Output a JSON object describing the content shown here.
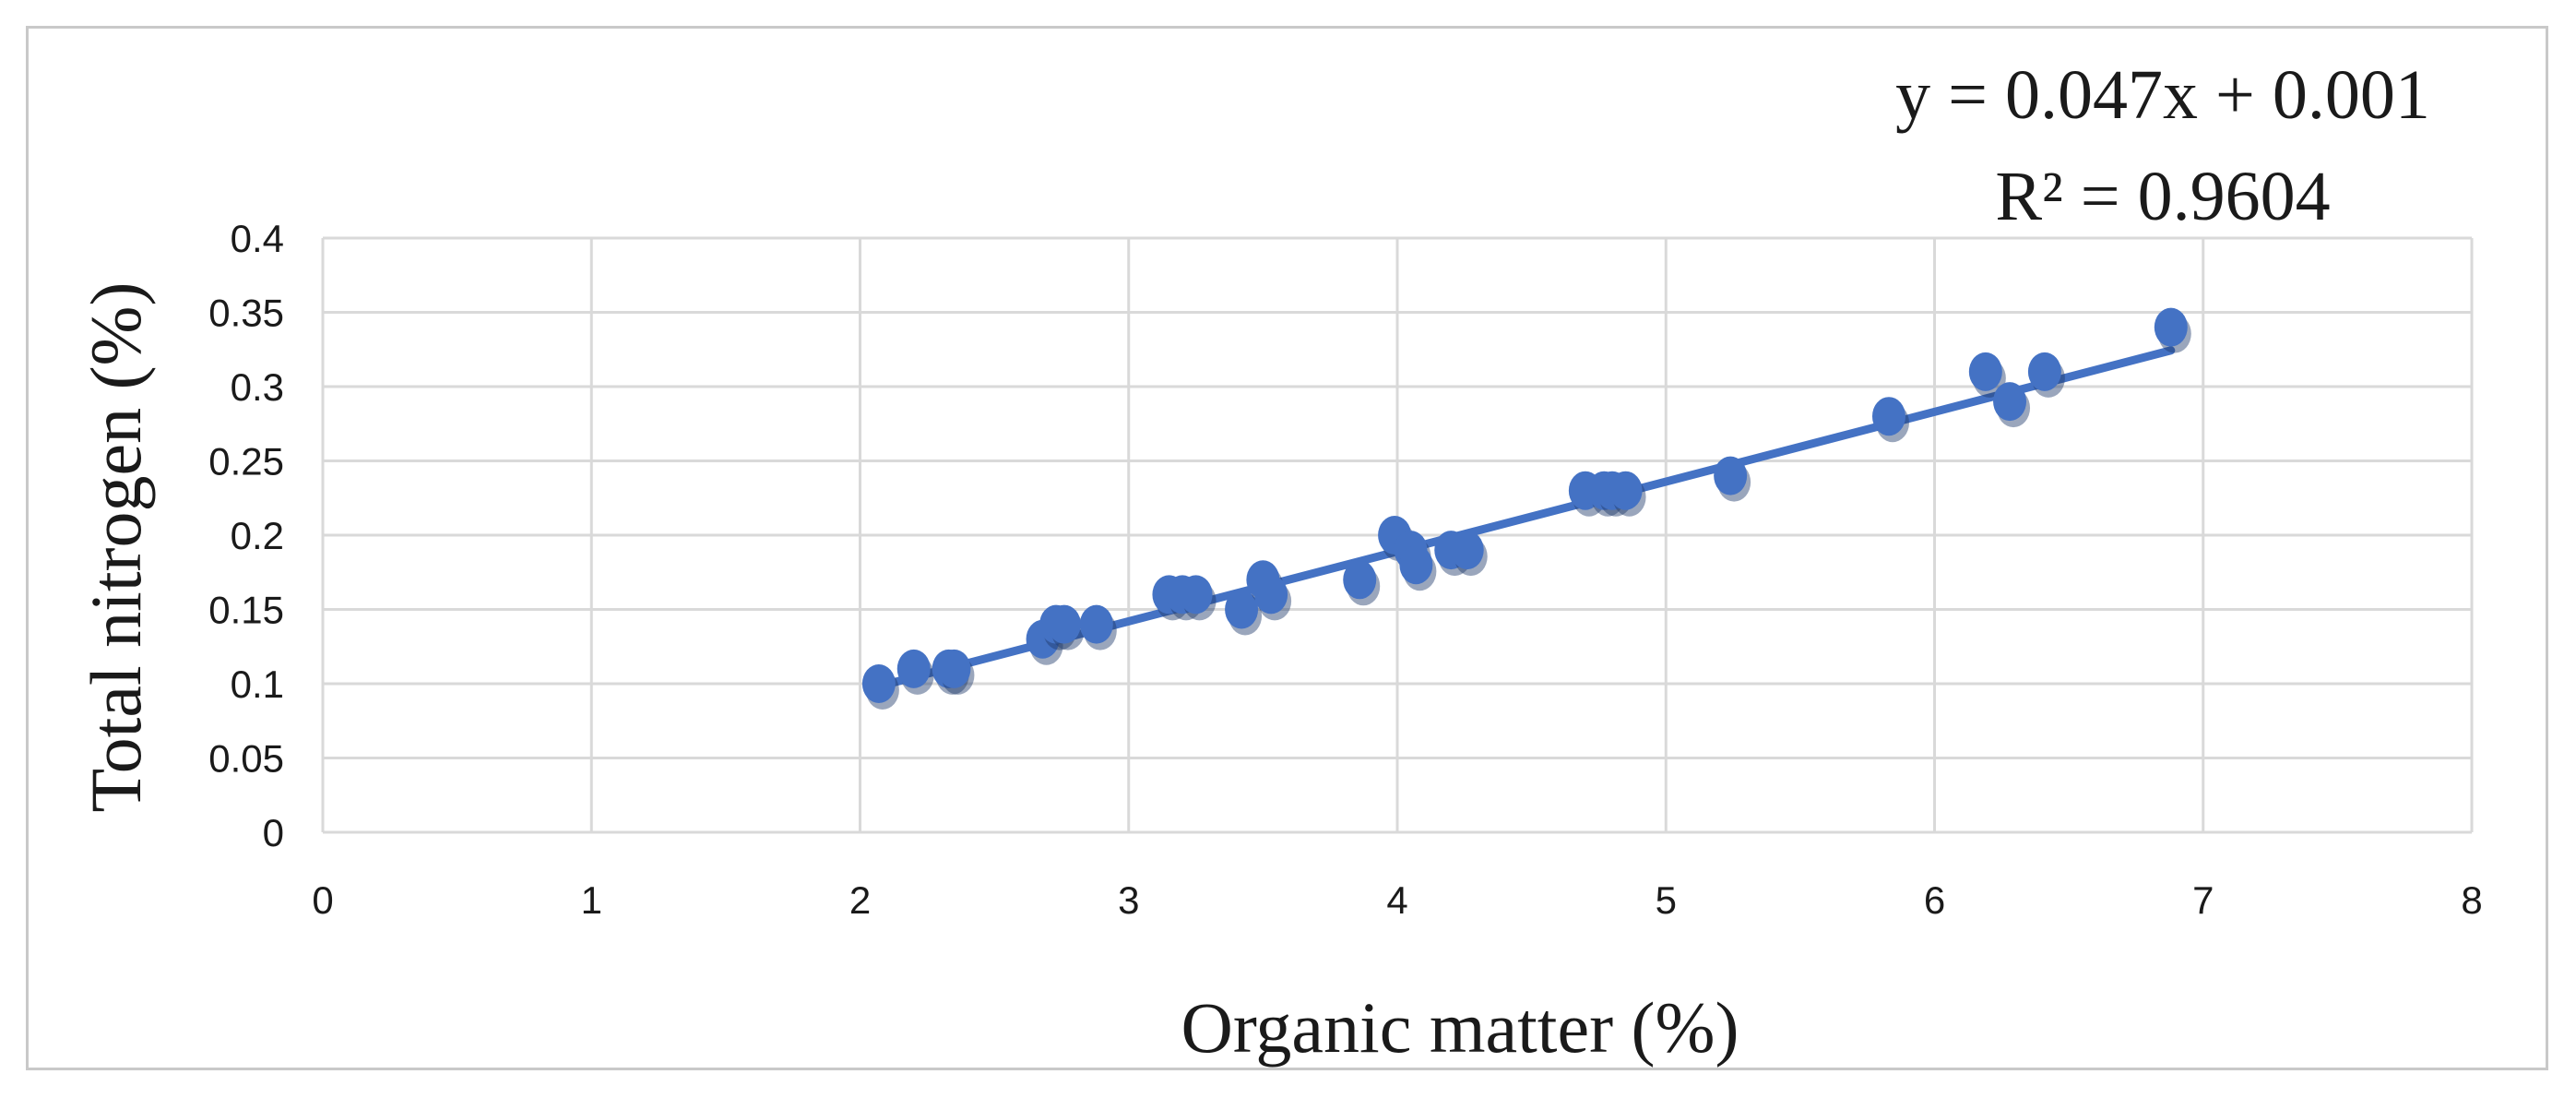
{
  "chart_data": {
    "type": "scatter",
    "title": "",
    "xlabel": "Organic matter (%)",
    "ylabel": "Total nitrogen (%)",
    "xlim": [
      0,
      8
    ],
    "ylim": [
      0,
      0.4
    ],
    "x_ticks": [
      "0",
      "1",
      "2",
      "3",
      "4",
      "5",
      "6",
      "7",
      "8"
    ],
    "y_ticks": [
      "0",
      "0.05",
      "0.1",
      "0.15",
      "0.2",
      "0.25",
      "0.3",
      "0.35",
      "0.4"
    ],
    "grid": true,
    "legend": "none",
    "marker_color": "#4472c4",
    "trendline_color": "#4472c4",
    "points": [
      {
        "x": 2.07,
        "y": 0.1
      },
      {
        "x": 2.2,
        "y": 0.11
      },
      {
        "x": 2.33,
        "y": 0.11
      },
      {
        "x": 2.35,
        "y": 0.11
      },
      {
        "x": 2.68,
        "y": 0.13
      },
      {
        "x": 2.73,
        "y": 0.14
      },
      {
        "x": 2.76,
        "y": 0.14
      },
      {
        "x": 2.88,
        "y": 0.14
      },
      {
        "x": 3.15,
        "y": 0.16
      },
      {
        "x": 3.2,
        "y": 0.16
      },
      {
        "x": 3.25,
        "y": 0.16
      },
      {
        "x": 3.42,
        "y": 0.15
      },
      {
        "x": 3.5,
        "y": 0.17
      },
      {
        "x": 3.53,
        "y": 0.16
      },
      {
        "x": 3.86,
        "y": 0.17
      },
      {
        "x": 3.99,
        "y": 0.2
      },
      {
        "x": 4.05,
        "y": 0.19
      },
      {
        "x": 4.07,
        "y": 0.18
      },
      {
        "x": 4.2,
        "y": 0.19
      },
      {
        "x": 4.26,
        "y": 0.19
      },
      {
        "x": 4.7,
        "y": 0.23
      },
      {
        "x": 4.77,
        "y": 0.23
      },
      {
        "x": 4.8,
        "y": 0.23
      },
      {
        "x": 4.85,
        "y": 0.23
      },
      {
        "x": 5.24,
        "y": 0.24
      },
      {
        "x": 5.83,
        "y": 0.28
      },
      {
        "x": 6.19,
        "y": 0.31
      },
      {
        "x": 6.28,
        "y": 0.29
      },
      {
        "x": 6.41,
        "y": 0.31
      },
      {
        "x": 6.88,
        "y": 0.34
      }
    ],
    "trendline": {
      "slope": 0.047,
      "intercept": 0.001,
      "x_range": [
        2.07,
        6.88
      ],
      "equation": "y = 0.047x + 0.001",
      "r_squared": "R² = 0.9604"
    }
  }
}
